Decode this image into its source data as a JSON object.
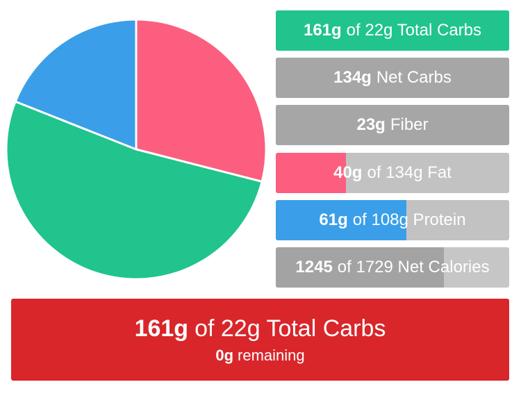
{
  "chart_data": {
    "type": "pie",
    "values": [
      29,
      52,
      19
    ],
    "colors": [
      "#fc5e80",
      "#20c48c",
      "#3a9fe8"
    ]
  },
  "bars": [
    {
      "bold": "161g",
      "text": "of 22g Total Carbs",
      "color": "#20c48c",
      "track": "#20c48c",
      "fill": 100
    },
    {
      "bold": "134g",
      "text": "Net Carbs",
      "color": "#a6a6a6",
      "track": "#a6a6a6",
      "fill": 100
    },
    {
      "bold": "23g",
      "text": "Fiber",
      "color": "#a6a6a6",
      "track": "#a6a6a6",
      "fill": 100
    },
    {
      "bold": "40g",
      "text": "of 134g Fat",
      "color": "#fc5e80",
      "track": "#c2c2c2",
      "fill": 30
    },
    {
      "bold": "61g",
      "text": "of 108g Protein",
      "color": "#3a9fe8",
      "track": "#c2c2c2",
      "fill": 56
    },
    {
      "bold": "1245",
      "text": "of 1729 Net Calories",
      "color": "#a3a3a3",
      "track": "#c6c6c6",
      "fill": 72
    }
  ],
  "summary": {
    "bold": "161g",
    "text": "of 22g Total Carbs",
    "sub_bold": "0g",
    "sub_text": "remaining",
    "color": "#d8262a"
  }
}
